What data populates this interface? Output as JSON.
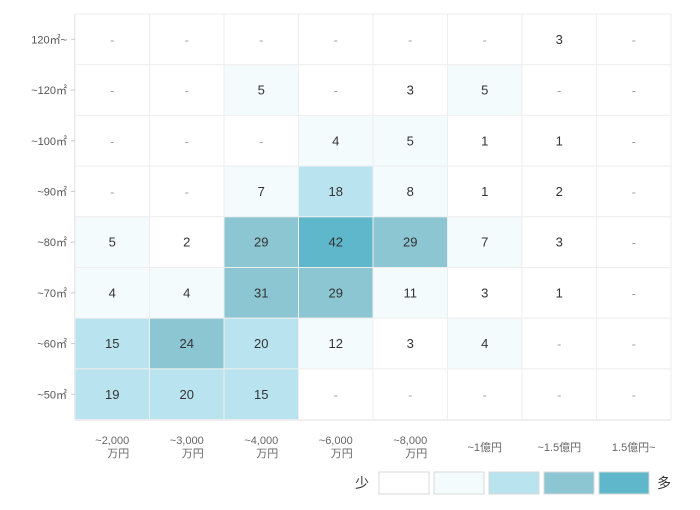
{
  "chart_data": {
    "type": "heatmap",
    "rows": [
      "120㎡~",
      "~120㎡",
      "~100㎡",
      "~90㎡",
      "~80㎡",
      "~70㎡",
      "~60㎡",
      "~50㎡"
    ],
    "columns": [
      [
        "~2,000",
        "万円"
      ],
      [
        "~3,000",
        "万円"
      ],
      [
        "~4,000",
        "万円"
      ],
      [
        "~6,000",
        "万円"
      ],
      [
        "~8,000",
        "万円"
      ],
      [
        "~1億円"
      ],
      [
        "~1.5億円"
      ],
      [
        "1.5億円~"
      ]
    ],
    "values": [
      [
        null,
        null,
        null,
        null,
        null,
        null,
        3,
        null
      ],
      [
        null,
        null,
        5,
        null,
        3,
        5,
        null,
        null
      ],
      [
        null,
        null,
        null,
        4,
        5,
        1,
        1,
        null
      ],
      [
        null,
        null,
        7,
        18,
        8,
        1,
        2,
        null
      ],
      [
        5,
        2,
        29,
        42,
        29,
        7,
        3,
        null
      ],
      [
        4,
        4,
        31,
        29,
        11,
        3,
        1,
        null
      ],
      [
        15,
        24,
        20,
        12,
        3,
        4,
        null,
        null
      ],
      [
        19,
        20,
        15,
        null,
        null,
        null,
        null,
        null
      ]
    ],
    "empty_symbol": "-",
    "color_scale": [
      "#ffffff",
      "#f4fbfd",
      "#b9e4ef",
      "#8cc6d3",
      "#5fb7cb"
    ],
    "legend": {
      "low_label": "少",
      "high_label": "多",
      "placement": "bottom-right"
    }
  }
}
